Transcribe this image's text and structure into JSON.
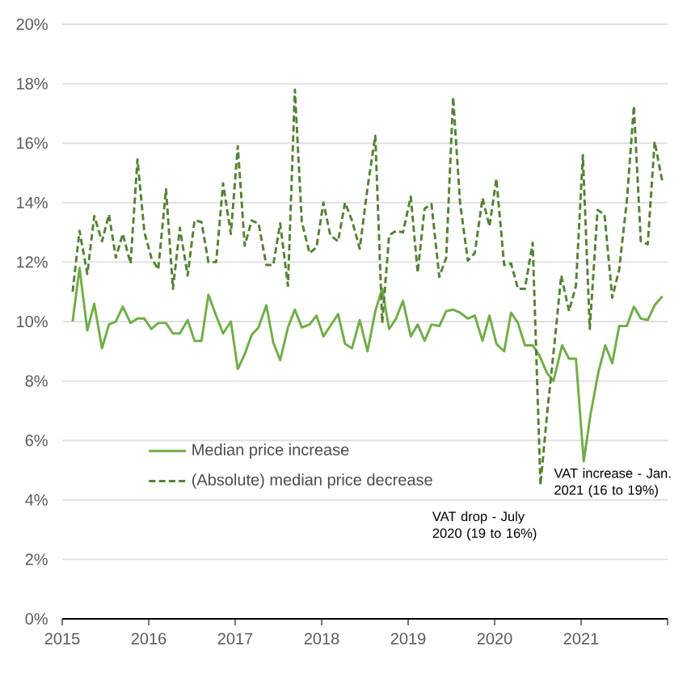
{
  "chart_data": {
    "type": "line",
    "xlim": [
      2015,
      2022
    ],
    "xticks": [
      2015,
      2016,
      2017,
      2018,
      2019,
      2020,
      2021,
      {
        "value": 2022,
        "label": null
      }
    ],
    "ylim": [
      0,
      20
    ],
    "yticks": [
      {
        "value": 0,
        "label": "0%"
      },
      {
        "value": 2,
        "label": "2%"
      },
      {
        "value": 4,
        "label": "4%"
      },
      {
        "value": 6,
        "label": "6%"
      },
      {
        "value": 8,
        "label": "8%"
      },
      {
        "value": 10,
        "label": "10%"
      },
      {
        "value": 12,
        "label": "12%"
      },
      {
        "value": 14,
        "label": "14%"
      },
      {
        "value": 16,
        "label": "16%"
      },
      {
        "value": 18,
        "label": "18%"
      },
      {
        "value": 20,
        "label": "20%"
      }
    ],
    "grid": "y",
    "legend": "left",
    "marker": "none",
    "series": [
      {
        "name": "Median price increase",
        "color": "#70ad47",
        "line_style": "solid",
        "x": [
          2015.12,
          2015.2,
          2015.29,
          2015.37,
          2015.46,
          2015.54,
          2015.62,
          2015.7,
          2015.79,
          2015.87,
          2015.95,
          2016.03,
          2016.11,
          2016.2,
          2016.28,
          2016.36,
          2016.45,
          2016.53,
          2016.61,
          2016.69,
          2016.78,
          2016.86,
          2016.95,
          2017.03,
          2017.11,
          2017.19,
          2017.27,
          2017.36,
          2017.44,
          2017.52,
          2017.61,
          2017.69,
          2017.77,
          2017.86,
          2017.94,
          2018.02,
          2018.1,
          2018.19,
          2018.27,
          2018.35,
          2018.44,
          2018.53,
          2018.62,
          2018.7,
          2018.78,
          2018.86,
          2018.94,
          2019.03,
          2019.11,
          2019.19,
          2019.27,
          2019.36,
          2019.44,
          2019.52,
          2019.6,
          2019.69,
          2019.77,
          2019.86,
          2019.94,
          2020.02,
          2020.11,
          2020.19,
          2020.27,
          2020.35,
          2020.44,
          2020.52,
          2020.6,
          2020.68,
          2020.78,
          2020.86,
          2020.94,
          2021.03,
          2021.11,
          2021.2,
          2021.28,
          2021.36,
          2021.44,
          2021.53,
          2021.61,
          2021.69,
          2021.77,
          2021.85,
          2021.94
        ],
        "values": [
          10.0,
          11.8,
          9.7,
          10.6,
          9.1,
          9.9,
          10.0,
          10.5,
          9.95,
          10.1,
          10.1,
          9.75,
          9.95,
          9.95,
          9.6,
          9.6,
          10.05,
          9.35,
          9.35,
          10.9,
          10.2,
          9.6,
          10.0,
          8.4,
          8.9,
          9.55,
          9.8,
          10.55,
          9.3,
          8.7,
          9.8,
          10.4,
          9.8,
          9.9,
          10.2,
          9.5,
          9.85,
          10.25,
          9.25,
          9.1,
          10.05,
          9.0,
          10.35,
          11.1,
          9.75,
          10.1,
          10.7,
          9.5,
          9.9,
          9.35,
          9.9,
          9.85,
          10.35,
          10.4,
          10.3,
          10.1,
          10.2,
          9.35,
          10.2,
          9.25,
          9.0,
          10.3,
          9.95,
          9.2,
          9.2,
          8.85,
          8.3,
          8.0,
          9.2,
          8.75,
          8.75,
          5.3,
          6.9,
          8.3,
          9.2,
          8.6,
          9.85,
          9.85,
          10.5,
          10.1,
          10.05,
          10.55,
          10.85
        ]
      },
      {
        "name": "(Absolute) median price decrease",
        "color": "#548235",
        "line_style": "dashed",
        "x": [
          2015.12,
          2015.2,
          2015.29,
          2015.37,
          2015.46,
          2015.54,
          2015.62,
          2015.7,
          2015.79,
          2015.87,
          2015.95,
          2016.03,
          2016.11,
          2016.2,
          2016.28,
          2016.36,
          2016.45,
          2016.53,
          2016.61,
          2016.69,
          2016.78,
          2016.86,
          2016.95,
          2017.03,
          2017.11,
          2017.19,
          2017.27,
          2017.36,
          2017.44,
          2017.52,
          2017.61,
          2017.69,
          2017.77,
          2017.86,
          2017.94,
          2018.02,
          2018.1,
          2018.19,
          2018.27,
          2018.35,
          2018.44,
          2018.53,
          2018.62,
          2018.7,
          2018.78,
          2018.86,
          2018.94,
          2019.03,
          2019.11,
          2019.19,
          2019.27,
          2019.36,
          2019.44,
          2019.52,
          2019.6,
          2019.69,
          2019.77,
          2019.86,
          2019.94,
          2020.02,
          2020.11,
          2020.19,
          2020.27,
          2020.35,
          2020.44,
          2020.53,
          2020.61,
          2020.69,
          2020.77,
          2020.86,
          2020.94,
          2021.02,
          2021.1,
          2021.19,
          2021.27,
          2021.36,
          2021.44,
          2021.53,
          2021.61,
          2021.69,
          2021.77,
          2021.85,
          2021.94
        ],
        "values": [
          11.0,
          13.05,
          11.6,
          13.55,
          12.7,
          13.6,
          12.15,
          12.95,
          11.95,
          15.45,
          13.0,
          12.15,
          11.75,
          14.45,
          11.1,
          13.15,
          11.55,
          13.4,
          13.35,
          12.0,
          12.0,
          14.65,
          12.95,
          15.9,
          12.55,
          13.4,
          13.3,
          11.9,
          11.9,
          13.3,
          11.2,
          17.8,
          13.35,
          12.3,
          12.5,
          14.0,
          12.9,
          12.7,
          14.0,
          13.4,
          12.45,
          14.5,
          16.25,
          9.95,
          12.9,
          13.05,
          13.0,
          14.2,
          11.65,
          13.8,
          13.95,
          11.5,
          12.15,
          17.55,
          14.0,
          12.05,
          12.3,
          14.15,
          13.2,
          14.8,
          11.9,
          11.95,
          11.1,
          11.1,
          12.65,
          4.5,
          7.0,
          9.2,
          11.55,
          10.35,
          11.2,
          15.6,
          9.75,
          13.75,
          13.6,
          10.8,
          11.75,
          14.1,
          17.25,
          12.7,
          12.6,
          16.05,
          14.7
        ]
      }
    ],
    "annotations": [
      {
        "text": "VAT drop - July 2020 (19 to 16%)",
        "x": 2020.53,
        "y": 4.5
      },
      {
        "text": "VAT increase - Jan. 2021 (16 to 19%)",
        "x": 2021.03,
        "y": 5.3
      }
    ]
  }
}
